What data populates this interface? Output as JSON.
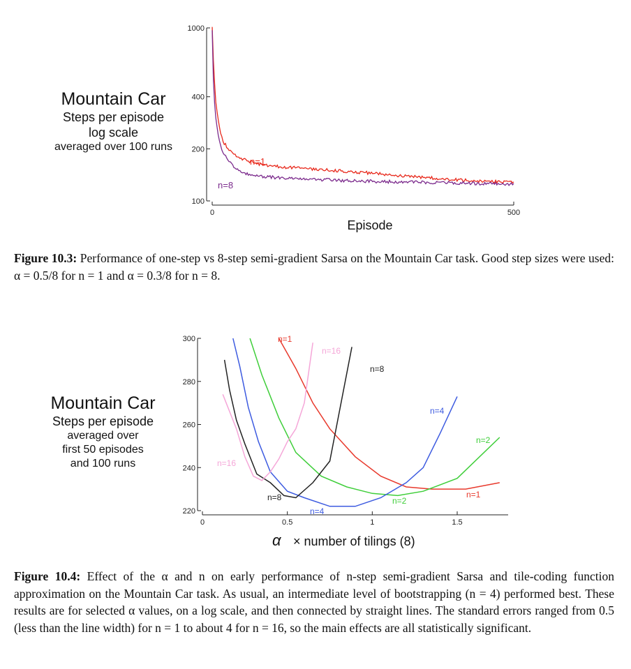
{
  "figure1": {
    "side_label": {
      "title": "Mountain Car",
      "line1": "Steps per episode",
      "line2": "log scale",
      "line3": "averaged over 100 runs"
    },
    "chart_data": {
      "type": "line",
      "xlabel": "Episode",
      "ylabel": "",
      "y_scale": "log",
      "xlim": [
        0,
        500
      ],
      "ylim": [
        100,
        1000
      ],
      "x_ticks": [
        "0",
        "500"
      ],
      "y_ticks": [
        "100",
        "200",
        "400",
        "1000"
      ],
      "series": [
        {
          "name": "n=1",
          "color": "#e8291c",
          "x": [
            0,
            2,
            5,
            10,
            15,
            20,
            30,
            40,
            50,
            60,
            70,
            80,
            100,
            120,
            150,
            200,
            250,
            300,
            350,
            400,
            450,
            500
          ],
          "y": [
            1000,
            650,
            400,
            290,
            240,
            215,
            195,
            182,
            175,
            170,
            166,
            163,
            159,
            157,
            154,
            150,
            146,
            141,
            137,
            133,
            130,
            128
          ]
        },
        {
          "name": "n=8",
          "color": "#7b2a8c",
          "x": [
            0,
            2,
            5,
            10,
            15,
            20,
            30,
            40,
            50,
            60,
            70,
            80,
            100,
            120,
            150,
            200,
            250,
            300,
            350,
            400,
            450,
            500
          ],
          "y": [
            950,
            500,
            320,
            240,
            205,
            185,
            165,
            152,
            146,
            143,
            141,
            139,
            137,
            135,
            134,
            132,
            130,
            129,
            128,
            127,
            126,
            125
          ]
        }
      ]
    },
    "caption": {
      "label": "Figure 10.3:",
      "text": "Performance of one-step vs 8-step semi-gradient Sarsa on the Mountain Car task. Good step sizes were used: α = 0.5/8 for n = 1 and α = 0.3/8 for n = 8."
    }
  },
  "figure2": {
    "side_label": {
      "title": "Mountain Car",
      "line1": "Steps per episode",
      "line2": "averaged over",
      "line3": "first 50 episodes",
      "line4": "and 100 runs"
    },
    "chart_data": {
      "type": "line",
      "xlabel_symbol": "α",
      "xlabel": "× number of tilings (8)",
      "ylabel": "",
      "xlim": [
        0,
        1.8
      ],
      "ylim": [
        220,
        300
      ],
      "x_ticks": [
        "0",
        "0.5",
        "1",
        "1.5"
      ],
      "y_ticks": [
        "220",
        "240",
        "260",
        "280",
        "300"
      ],
      "series": [
        {
          "name": "n=1",
          "color": "#e8392c",
          "x": [
            0.45,
            0.55,
            0.65,
            0.75,
            0.9,
            1.05,
            1.2,
            1.35,
            1.55,
            1.75
          ],
          "y": [
            301,
            286,
            270,
            258,
            245,
            236,
            231,
            230,
            230,
            233
          ]
        },
        {
          "name": "n=2",
          "color": "#3fce3a",
          "x": [
            0.28,
            0.35,
            0.45,
            0.55,
            0.7,
            0.85,
            1.0,
            1.15,
            1.3,
            1.5,
            1.75
          ],
          "y": [
            301,
            283,
            263,
            247,
            236,
            231,
            228,
            227,
            229,
            235,
            254
          ]
        },
        {
          "name": "n=4",
          "color": "#3d5be0",
          "x": [
            0.18,
            0.22,
            0.27,
            0.33,
            0.4,
            0.5,
            0.6,
            0.75,
            0.9,
            1.05,
            1.2,
            1.3,
            1.4,
            1.5
          ],
          "y": [
            301,
            287,
            268,
            252,
            238,
            229,
            226,
            222,
            222,
            226,
            233,
            240,
            256,
            273
          ]
        },
        {
          "name": "n=8",
          "color": "#222222",
          "x": [
            0.13,
            0.16,
            0.2,
            0.25,
            0.32,
            0.4,
            0.48,
            0.55,
            0.65,
            0.75,
            0.88
          ],
          "y": [
            290,
            276,
            262,
            251,
            237,
            233,
            227,
            226,
            233,
            243,
            296
          ]
        },
        {
          "name": "n=16",
          "color": "#f5a6d8",
          "x": [
            0.12,
            0.15,
            0.2,
            0.25,
            0.3,
            0.35,
            0.4,
            0.45,
            0.5,
            0.55,
            0.6,
            0.65
          ],
          "y": [
            274,
            268,
            258,
            245,
            236,
            234,
            238,
            244,
            252,
            258,
            270,
            298
          ]
        }
      ]
    },
    "caption": {
      "label": "Figure 10.4:",
      "text": "Effect of the α and n on early performance of n-step semi-gradient Sarsa and tile-coding function approximation on the Mountain Car task. As usual, an intermediate level of bootstrapping (n = 4) performed best. These results are for selected α values, on a log scale, and then connected by straight lines. The standard errors ranged from 0.5 (less than the line width) for n = 1 to about 4 for n = 16, so the main effects are all statistically significant."
    }
  }
}
